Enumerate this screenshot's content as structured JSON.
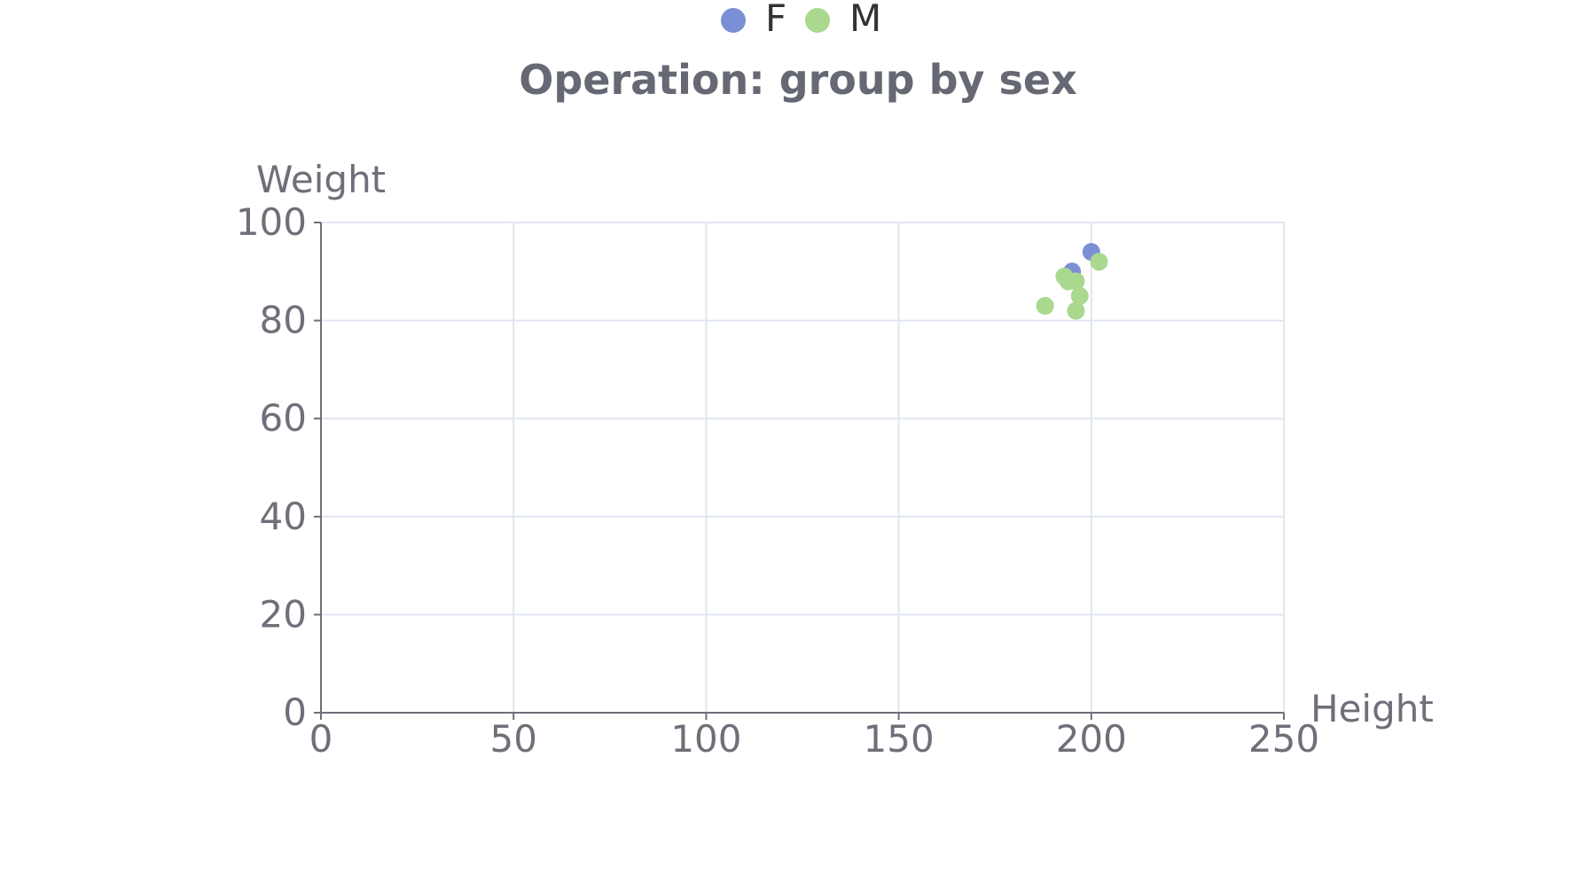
{
  "chart_data": {
    "type": "scatter",
    "title": "Operation: group by sex",
    "xlabel": "Height",
    "ylabel": "Weight",
    "xlim": [
      0,
      250
    ],
    "ylim": [
      0,
      100
    ],
    "x_ticks": [
      "0",
      "50",
      "100",
      "150",
      "200",
      "250"
    ],
    "y_ticks": [
      "0",
      "20",
      "40",
      "60",
      "80",
      "100"
    ],
    "grid": true,
    "legend_position": "top-center",
    "series": [
      {
        "name": "F",
        "color": "#7b8fd4",
        "points": [
          [
            200,
            94
          ],
          [
            195,
            90
          ]
        ]
      },
      {
        "name": "M",
        "color": "#a9d88e",
        "points": [
          [
            202,
            92
          ],
          [
            193,
            89
          ],
          [
            196,
            88
          ],
          [
            194,
            88
          ],
          [
            197,
            85
          ],
          [
            188,
            83
          ],
          [
            196,
            82
          ]
        ]
      }
    ]
  }
}
